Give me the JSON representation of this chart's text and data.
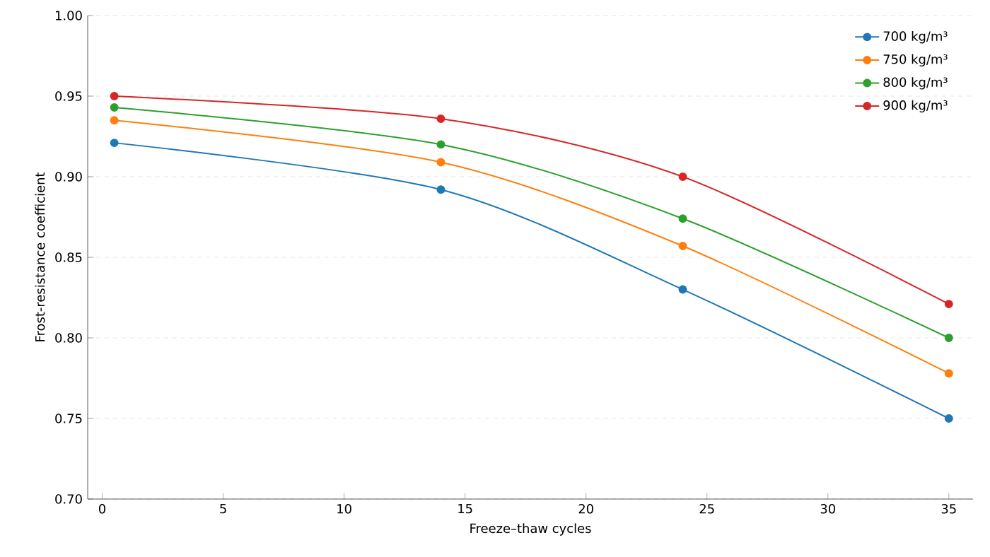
{
  "chart_data": {
    "type": "line",
    "xlabel": "Freeze–thaw cycles",
    "ylabel": "Frost-resistance coefficient",
    "x": [
      0.5,
      14,
      24,
      35
    ],
    "series": [
      {
        "name": "700 kg/m³",
        "color": "#1f77b4",
        "values": [
          0.921,
          0.892,
          0.83,
          0.75
        ]
      },
      {
        "name": "750 kg/m³",
        "color": "#ff7f0e",
        "values": [
          0.935,
          0.909,
          0.857,
          0.778
        ]
      },
      {
        "name": "800 kg/m³",
        "color": "#2ca02c",
        "values": [
          0.943,
          0.92,
          0.874,
          0.8
        ]
      },
      {
        "name": "900 kg/m³",
        "color": "#d62728",
        "values": [
          0.95,
          0.936,
          0.9,
          0.821
        ]
      }
    ],
    "xlim": [
      -0.6,
      36
    ],
    "xticks": [
      0,
      5,
      10,
      15,
      20,
      25,
      30,
      35
    ],
    "ylim": [
      0.7,
      1.0
    ],
    "yticks": [
      {
        "value": 0.7,
        "label": "0.70"
      },
      0.75,
      {
        "value": 0.8,
        "label": "0.80"
      },
      0.85,
      {
        "value": 0.9,
        "label": "0.90"
      },
      0.95,
      {
        "value": 1.0,
        "label": "1.00"
      }
    ],
    "grid": "y",
    "legend": "top right",
    "marker": "circle",
    "line_style": "solid"
  }
}
